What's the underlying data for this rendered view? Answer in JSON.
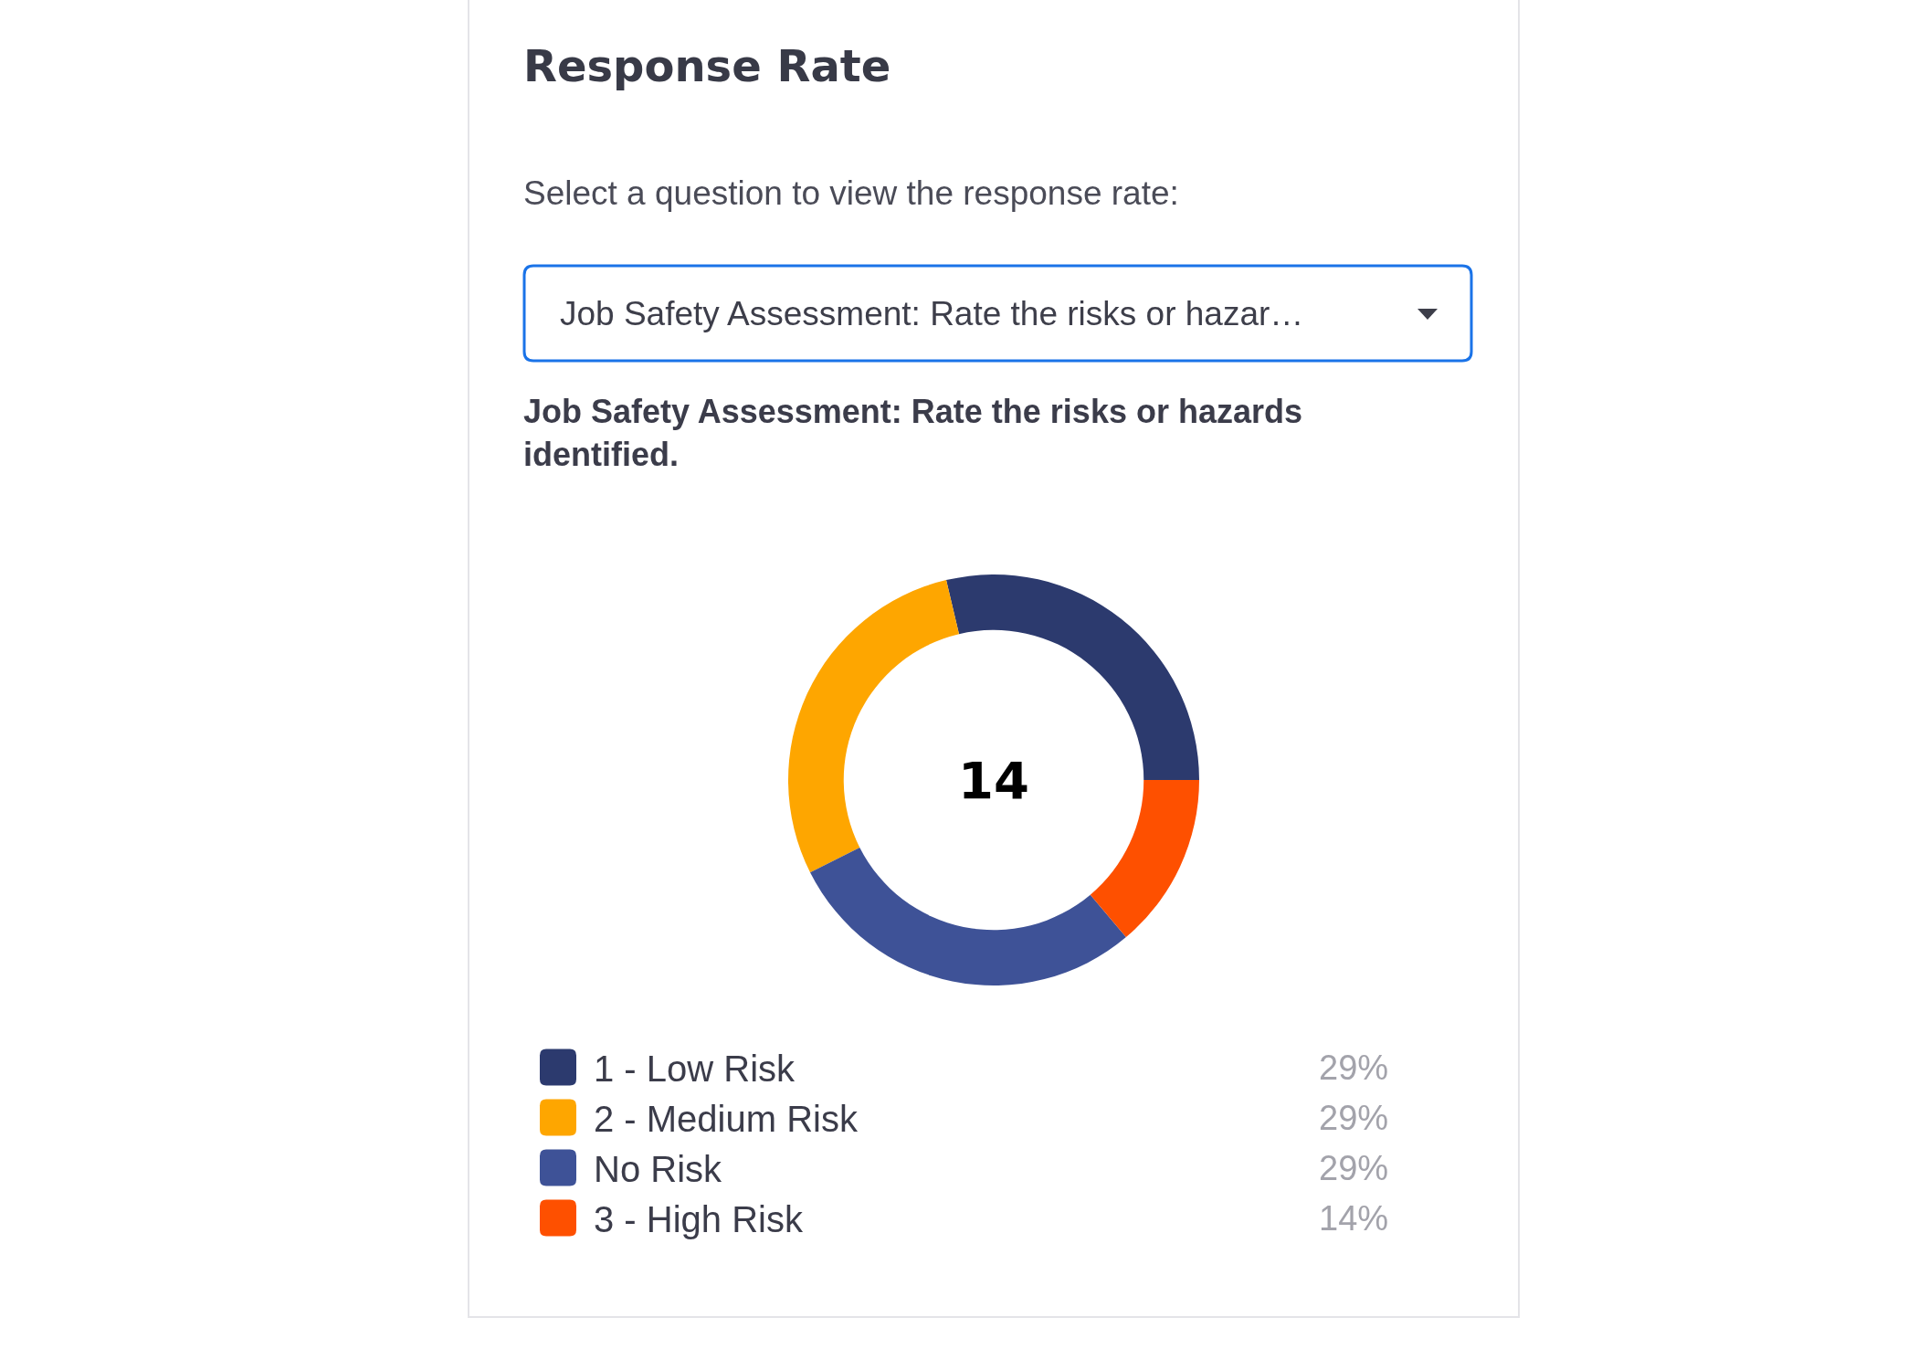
{
  "chart_data": {
    "type": "donut",
    "title": "Response Rate",
    "subtitle": "Job Safety Assessment: Rate the risks or hazards identified.",
    "annotations": [
      "Select a question to view the response rate:",
      "Job Safety Assessment: Rate the risks or hazar…",
      "14"
    ],
    "categories": [
      "1 - Low Risk",
      "2 - Medium Risk",
      "No Risk",
      "3 - High Risk"
    ],
    "values": [
      29,
      29,
      29,
      14
    ],
    "colors": [
      "#2c3a6e",
      "#fea600",
      "#3e5297",
      "#fe5000"
    ],
    "value_labels": [
      "29%",
      "29%",
      "29%",
      "14%"
    ],
    "legend": "bottom"
  }
}
